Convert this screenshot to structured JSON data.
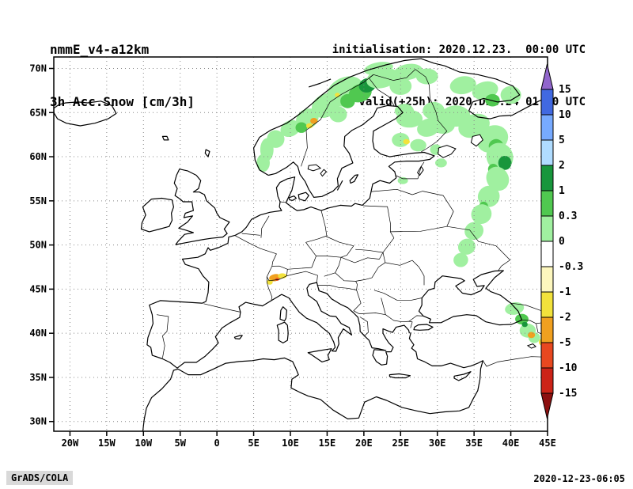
{
  "header": {
    "model_title": "nmmE_v4-a12km",
    "field_title": "3h Acc.Snow [cm/3h]",
    "init_label": "initialisation: 2020.12.23.  00:00 UTC",
    "valid_label": "valid(+25h): 2020.DEC.24 01:00 UTC"
  },
  "footer": {
    "left": "GrADS/COLA",
    "right": "2020-12-23-06:05"
  },
  "chart_data": {
    "type": "heatmap",
    "title": "3h Acc.Snow [cm/3h]",
    "projection": "latlon",
    "grid": "dotted",
    "lon_range": [
      -22.2,
      45
    ],
    "lat_range": [
      28.9,
      71.3
    ],
    "x_ticks": {
      "labels": [
        "20W",
        "15W",
        "10W",
        "5W",
        "0",
        "5E",
        "10E",
        "15E",
        "20E",
        "25E",
        "30E",
        "35E",
        "40E",
        "45E"
      ],
      "lons": [
        -20,
        -15,
        -10,
        -5,
        0,
        5,
        10,
        15,
        20,
        25,
        30,
        35,
        40,
        45
      ]
    },
    "y_ticks": {
      "labels": [
        "70N",
        "65N",
        "60N",
        "55N",
        "50N",
        "45N",
        "40N",
        "35N",
        "30N"
      ],
      "lats": [
        70,
        65,
        60,
        55,
        50,
        45,
        40,
        35,
        30
      ]
    },
    "colorbar": {
      "orientation": "vertical-right",
      "levels": [
        15,
        10,
        5,
        2,
        1,
        0.3,
        0,
        -0.3,
        -1,
        -2,
        -5,
        -10,
        -15
      ],
      "labels": [
        "15",
        "10",
        "5",
        "2",
        "1",
        "0.3",
        "0",
        "-0.3",
        "-1",
        "-2",
        "-5",
        "-10",
        "-15"
      ],
      "colors": [
        "#9166cc",
        "#4169e1",
        "#77aaff",
        "#b0dcff",
        "#18963c",
        "#50c850",
        "#a0f0a0",
        "#ffffff",
        "#fdf7be",
        "#f2e23c",
        "#f0a020",
        "#e84820",
        "#cc2418",
        "#8c1010"
      ]
    },
    "cell_format": [
      "lon",
      "lat",
      "rx_deg",
      "ry_deg",
      "rotation_deg",
      "value_cm"
    ],
    "cells": [
      [
        6.3,
        59.3,
        0.9,
        1.0,
        0,
        0.2
      ],
      [
        6.8,
        60.8,
        0.9,
        1.3,
        0,
        0.2
      ],
      [
        8.0,
        62.0,
        1.2,
        1.0,
        -20,
        0.2
      ],
      [
        10.0,
        63.2,
        1.4,
        0.9,
        -25,
        0.2
      ],
      [
        12.3,
        64.3,
        1.6,
        1.1,
        -30,
        0.2
      ],
      [
        11.5,
        63.3,
        0.8,
        0.6,
        0,
        0.6
      ],
      [
        13.2,
        64.05,
        0.5,
        0.35,
        0,
        -3
      ],
      [
        12.6,
        63.5,
        0.45,
        0.3,
        0,
        -1.5
      ],
      [
        14.8,
        65.8,
        2.0,
        1.3,
        -30,
        0.2
      ],
      [
        17.5,
        67.4,
        2.6,
        1.6,
        -25,
        0.2
      ],
      [
        17.8,
        66.3,
        1.0,
        0.8,
        0,
        0.6
      ],
      [
        19.5,
        67.2,
        1.6,
        1.0,
        -20,
        0.6
      ],
      [
        20.5,
        68.1,
        1.2,
        0.8,
        -20,
        1.5
      ],
      [
        22.5,
        68.9,
        2.2,
        1.1,
        -15,
        0.2
      ],
      [
        22.0,
        70.0,
        2.0,
        0.7,
        -10,
        0.2
      ],
      [
        26.0,
        69.6,
        2.0,
        0.9,
        -10,
        0.2
      ],
      [
        25.0,
        68.0,
        1.5,
        1.0,
        0,
        0.2
      ],
      [
        28.6,
        69.1,
        1.5,
        0.9,
        0,
        0.2
      ],
      [
        16.5,
        64.8,
        1.2,
        0.9,
        0,
        0.2
      ],
      [
        16.4,
        67.0,
        0.35,
        0.25,
        0,
        -1.5
      ],
      [
        25.5,
        65.2,
        1.3,
        0.8,
        0,
        0.2
      ],
      [
        26.2,
        64.3,
        1.8,
        1.0,
        0,
        0.2
      ],
      [
        28.8,
        63.3,
        1.6,
        1.0,
        -20,
        0.2
      ],
      [
        25.0,
        61.9,
        1.2,
        0.8,
        0,
        0.2
      ],
      [
        27.4,
        61.3,
        1.1,
        0.7,
        0,
        0.2
      ],
      [
        25.8,
        61.7,
        0.45,
        0.3,
        0,
        -1.5
      ],
      [
        29.8,
        60.8,
        0.8,
        0.6,
        0,
        0.2
      ],
      [
        30.5,
        59.3,
        0.8,
        0.5,
        0,
        0.2
      ],
      [
        33.5,
        68.1,
        1.8,
        1.0,
        -10,
        0.2
      ],
      [
        36.5,
        67.5,
        1.8,
        1.0,
        -15,
        0.2
      ],
      [
        40.0,
        67.0,
        1.4,
        1.0,
        0,
        0.2
      ],
      [
        37.5,
        66.4,
        1.0,
        0.7,
        0,
        0.6
      ],
      [
        29.5,
        65.2,
        1.5,
        1.0,
        0,
        0.2
      ],
      [
        30.8,
        63.6,
        1.6,
        1.0,
        0,
        0.2
      ],
      [
        32.5,
        64.6,
        2.0,
        1.2,
        0,
        0.2
      ],
      [
        35.0,
        63.5,
        2.2,
        1.3,
        -20,
        0.2
      ],
      [
        37.5,
        62.0,
        2.2,
        1.5,
        -25,
        0.2
      ],
      [
        38.0,
        61.2,
        1.0,
        0.8,
        0,
        0.6
      ],
      [
        38.5,
        60.0,
        1.8,
        1.6,
        -30,
        0.2
      ],
      [
        39.2,
        59.3,
        0.9,
        0.8,
        0,
        1.5
      ],
      [
        37.6,
        58.6,
        0.7,
        0.6,
        0,
        0.6
      ],
      [
        38.2,
        57.5,
        1.5,
        1.4,
        -30,
        0.2
      ],
      [
        37.0,
        55.5,
        1.5,
        1.2,
        -30,
        0.2
      ],
      [
        36.3,
        54.4,
        0.6,
        0.5,
        0,
        0.6
      ],
      [
        36.0,
        53.5,
        1.4,
        1.1,
        -25,
        0.2
      ],
      [
        35.0,
        51.6,
        1.3,
        1.0,
        -25,
        0.2
      ],
      [
        34.0,
        49.8,
        1.2,
        0.9,
        -20,
        0.2
      ],
      [
        33.2,
        48.3,
        1.0,
        0.8,
        -15,
        0.2
      ],
      [
        25.3,
        57.3,
        0.7,
        0.4,
        0,
        0.2
      ],
      [
        7.9,
        46.3,
        0.8,
        0.4,
        -10,
        -3
      ],
      [
        8.9,
        46.5,
        0.6,
        0.3,
        0,
        -1.5
      ],
      [
        7.2,
        45.8,
        0.4,
        0.3,
        0,
        -1.5
      ],
      [
        8.2,
        46.1,
        0.25,
        0.15,
        0,
        -7
      ],
      [
        40.5,
        42.8,
        1.3,
        0.7,
        -10,
        0.2
      ],
      [
        41.5,
        41.6,
        0.9,
        0.6,
        0,
        0.6
      ],
      [
        42.3,
        40.3,
        1.1,
        0.8,
        0,
        0.2
      ],
      [
        43.2,
        39.5,
        0.8,
        0.6,
        0,
        0.2
      ],
      [
        42.8,
        39.8,
        0.5,
        0.35,
        0,
        -3
      ],
      [
        41.9,
        41.0,
        0.4,
        0.3,
        0,
        1.5
      ],
      [
        44.3,
        39.0,
        0.5,
        0.4,
        0,
        -1.5
      ],
      [
        44.7,
        40.3,
        0.4,
        0.5,
        0,
        0.6
      ]
    ]
  }
}
